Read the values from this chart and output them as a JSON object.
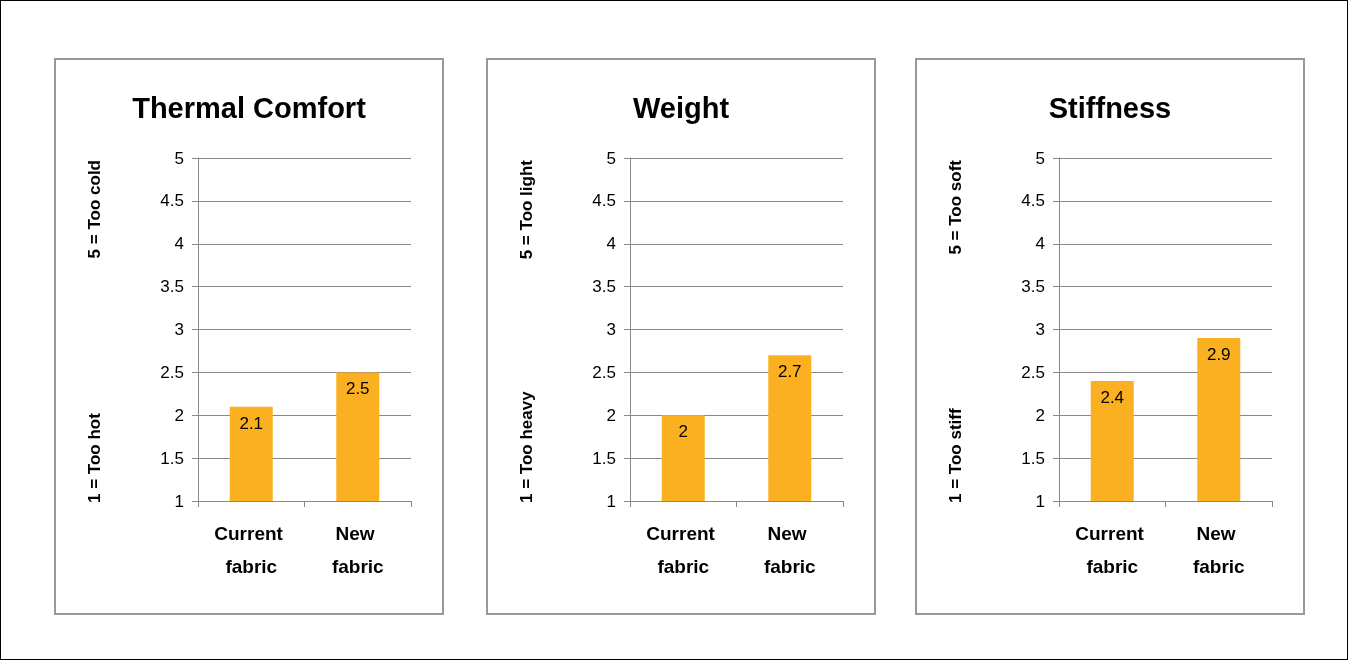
{
  "chart_data": [
    {
      "type": "bar",
      "title": "Thermal Comfort",
      "ylabel": "5 = Too cold",
      "annotations": [
        "1 = Too hot"
      ],
      "categories": [
        "Current fabric",
        "New fabric"
      ],
      "values": [
        2.1,
        2.5
      ],
      "color": "#fbb022",
      "ylim": [
        1,
        5
      ],
      "yticks": [
        1,
        1.5,
        2,
        2.5,
        3,
        3.5,
        4,
        4.5,
        5
      ],
      "grid": "y",
      "data_labels": true
    },
    {
      "type": "bar",
      "title": "Weight",
      "ylabel": "5 = Too light",
      "annotations": [
        "1 = Too heavy"
      ],
      "categories": [
        "Current fabric",
        "New fabric"
      ],
      "values": [
        2,
        2.7
      ],
      "color": "#fbb022",
      "ylim": [
        1,
        5
      ],
      "yticks": [
        1,
        1.5,
        2,
        2.5,
        3,
        3.5,
        4,
        4.5,
        5
      ],
      "grid": "y",
      "data_labels": true
    },
    {
      "type": "bar",
      "title": "Stiffness",
      "ylabel": "5 = Too soft",
      "annotations": [
        "1 = Too stiff"
      ],
      "categories": [
        "Current fabric",
        "New fabric"
      ],
      "values": [
        2.4,
        2.9
      ],
      "color": "#fbb022",
      "ylim": [
        1,
        5
      ],
      "yticks": [
        1,
        1.5,
        2,
        2.5,
        3,
        3.5,
        4,
        4.5,
        5
      ],
      "grid": "y",
      "data_labels": true
    }
  ]
}
